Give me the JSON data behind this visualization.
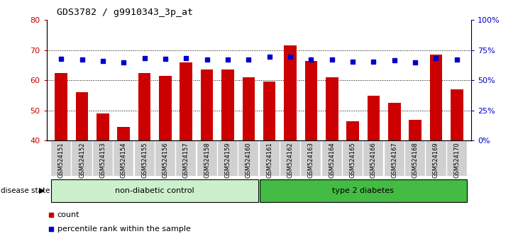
{
  "title": "GDS3782 / g9910343_3p_at",
  "samples": [
    "GSM524151",
    "GSM524152",
    "GSM524153",
    "GSM524154",
    "GSM524155",
    "GSM524156",
    "GSM524157",
    "GSM524158",
    "GSM524159",
    "GSM524160",
    "GSM524161",
    "GSM524162",
    "GSM524163",
    "GSM524164",
    "GSM524165",
    "GSM524166",
    "GSM524167",
    "GSM524168",
    "GSM524169",
    "GSM524170"
  ],
  "counts": [
    62.5,
    56.0,
    49.0,
    44.5,
    62.5,
    61.5,
    66.0,
    63.5,
    63.5,
    61.0,
    59.5,
    71.5,
    66.5,
    61.0,
    46.5,
    55.0,
    52.5,
    47.0,
    68.5,
    57.0
  ],
  "percentiles": [
    68.0,
    67.5,
    66.0,
    65.0,
    68.5,
    68.0,
    68.5,
    67.5,
    67.0,
    67.0,
    69.5,
    69.5,
    67.5,
    67.0,
    65.5,
    65.5,
    66.5,
    65.0,
    68.5,
    67.0
  ],
  "groups": [
    "non-diabetic control",
    "non-diabetic control",
    "non-diabetic control",
    "non-diabetic control",
    "non-diabetic control",
    "non-diabetic control",
    "non-diabetic control",
    "non-diabetic control",
    "non-diabetic control",
    "non-diabetic control",
    "type 2 diabetes",
    "type 2 diabetes",
    "type 2 diabetes",
    "type 2 diabetes",
    "type 2 diabetes",
    "type 2 diabetes",
    "type 2 diabetes",
    "type 2 diabetes",
    "type 2 diabetes",
    "type 2 diabetes"
  ],
  "bar_color": "#cc0000",
  "dot_color": "#0000cc",
  "group_colors": {
    "non-diabetic control": "#ccf0cc",
    "type 2 diabetes": "#44bb44"
  },
  "ylim_left": [
    40,
    80
  ],
  "ylim_right": [
    0,
    100
  ],
  "yticks_left": [
    40,
    50,
    60,
    70,
    80
  ],
  "yticks_right": [
    0,
    25,
    50,
    75,
    100
  ],
  "ytick_labels_right": [
    "0%",
    "25%",
    "50%",
    "75%",
    "100%"
  ],
  "background_color": "#ffffff",
  "tick_bg": "#d0d0d0"
}
